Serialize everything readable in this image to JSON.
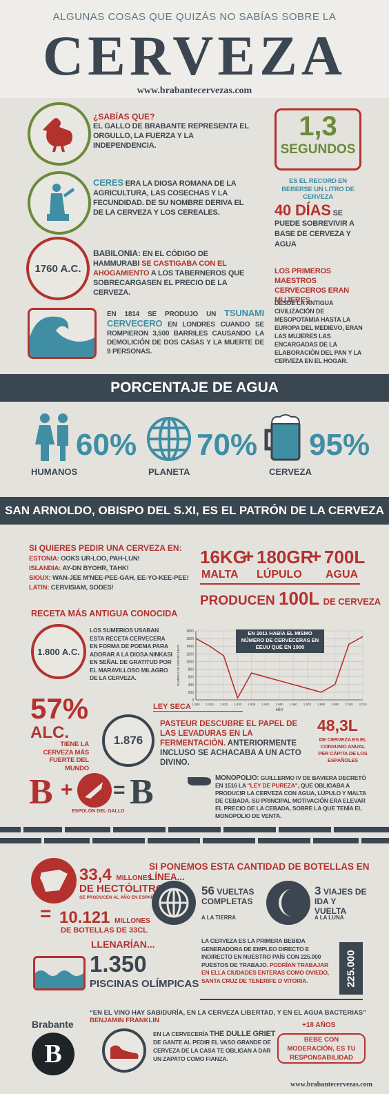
{
  "header": {
    "kicker": "ALGUNAS COSAS QUE QUIZÁS NO SABÍAS SOBRE LA",
    "title": "CERVEZA",
    "url": "www.brabantecervezas.com"
  },
  "facts": [
    {
      "heading": "¿SABÍAS QUE?",
      "text": "EL GALLO DE BRABANTE REPRESENTA EL ORGULLO, LA FUERZA Y LA INDEPENDENCIA."
    },
    {
      "highlight": "CERES",
      "text": "ERA LA DIOSA ROMANA DE LA AGRICULTURA, LAS COSECHAS Y LA FECUNDIDAD. DE SU NOMBRE DERIVA EL DE LA CERVEZA Y LOS CEREALES."
    },
    {
      "badge": "1760 A.C.",
      "lead": "BABILONIA:",
      "text": "EN EL CÓDIGO DE HAMMURABI",
      "highlight": "SE CASTIGABA CON EL AHOGAMIENTO",
      "rest": "A LOS TABERNEROS QUE SOBRECARGASEN EL PRECIO DE LA CERVEZA."
    },
    {
      "text": "EN 1814 SE PRODUJO UN",
      "highlight": "TSUNAMI CERVECERO",
      "rest": "EN LONDRES CUANDO SE ROMPIERON 3,500 BARRILES CAUSANDO LA DEMOLICIÓN DE DOS CASAS Y LA MUERTE DE 9 PERSONAS."
    }
  ],
  "record": {
    "number": "1,3",
    "unit": "SEGUNDOS",
    "caption": "ES EL RECORD EN BEBERSE UN LITRO DE CERVEZA"
  },
  "days": {
    "number": "40 DÍAS",
    "text": "SE PUEDE SOBREVIVIR A BASE DE CERVEZA Y AGUA"
  },
  "women": {
    "heading": "LOS PRIMEROS MAESTROS CERVECEROS ERAN MUJERES.",
    "text": "DESDE LA ANTIGUA CIVILIZACIÓN DE MESOPOTAMIA HASTA LA EUROPA DEL MEDIEVO, ERAN LAS MUJERES LAS ENCARGADAS DE LA ELABORACIÓN DEL PAN Y LA CERVEZA EN EL HOGAR."
  },
  "water": {
    "title": "PORCENTAJE DE AGUA",
    "items": [
      {
        "value": "60%",
        "label": "HUMANOS"
      },
      {
        "value": "70%",
        "label": "PLANETA"
      },
      {
        "value": "95%",
        "label": "CERVEZA"
      }
    ]
  },
  "patron": "SAN ARNOLDO, OBISPO DEL S.XI, ES EL PATRÓN DE LA CERVEZA",
  "order": {
    "heading": "SI QUIERES PEDIR UNA CERVEZA EN:",
    "lines": [
      {
        "lang": "ESTONIA:",
        "phrase": "OOKS UR-LOO, PAH-LUN!"
      },
      {
        "lang": "ISLANDIA:",
        "phrase": "AY-DN BYOHR, TAHK!"
      },
      {
        "lang": "SIOUX:",
        "phrase": "WAN-JEE M'NEE-PEE-GAH, EE-YO-KEE-PEE!"
      },
      {
        "lang": "LATIN:",
        "phrase": "CERVISIAM, SODES!"
      }
    ]
  },
  "recipe": {
    "operator": "+",
    "items": [
      {
        "amount": "16KG",
        "name": "MALTA"
      },
      {
        "amount": "180GR",
        "name": "LÚPULO"
      },
      {
        "amount": "700L",
        "name": "AGUA"
      }
    ],
    "verb": "PRODUCEN",
    "result": "100L",
    "tail": "DE CERVEZA"
  },
  "oldest": {
    "heading": "RECETA MÁS ANTIGUA CONOCIDA",
    "badge": "1.800 A.C.",
    "text": "LOS SUMERIOS USABAN ESTA RECETA CERVECERA EN FORMA DE POEMA PARA ADORAR A LA DIOSA NINKASI EN SEÑAL DE GRATITUD POR EL MARAVILLOSO MILAGRO DE LA CERVEZA."
  },
  "chart_data": {
    "type": "line",
    "annotation": "EN 2011 HABÍA EL MISMO NÚMERO DE CERVECERAS EN EEUU QUE EN 1900",
    "y_label": "NÚMERO DE CERVECERAS",
    "x_label": "AÑO",
    "categories": [
      "1.900",
      "1.910",
      "1.920",
      "1.930",
      "1.935",
      "1.940",
      "1.950",
      "1.960",
      "1.970",
      "1.980",
      "1.990",
      "2.000",
      "2.010"
    ],
    "values": [
      1600,
      1400,
      1150,
      50,
      700,
      600,
      500,
      400,
      300,
      200,
      400,
      1450,
      1650
    ],
    "color": "#b3322e",
    "ylim": [
      0,
      1800
    ],
    "yticks": [
      0,
      200,
      400,
      600,
      800,
      1000,
      1200,
      1400,
      1600,
      1800
    ],
    "grid": true
  },
  "prohibition": "LEY SECA",
  "strongest": {
    "value": "57%",
    "unit": "ALC.",
    "text": "TIENE LA CERVEZA MÁS FUERTE DEL MUNDO"
  },
  "pasteur": {
    "badge": "1.876",
    "highlight": "PASTEUR DESCUBRE EL PAPEL DE LAS LEVADURAS EN LA FERMENTACIÓN.",
    "text": "ANTERIORMENTE INCLUSO SE ACHACABA A UN ACTO DIVINO."
  },
  "consumption": {
    "value": "48,3L",
    "text": "DE CERVEZA ES EL CONSUMO ANUAL PER CÁPITA DE LOS ESPAÑOLES"
  },
  "equation": {
    "letter": "B",
    "plus": "+",
    "equals": "=",
    "caption": "ESPOLÓN DEL GALLO"
  },
  "monopoly": {
    "lead": "MONOPOLIO:",
    "text": "GUILLERMO IV DE BAVIERA DECRETÓ EN 1516 LA",
    "highlight": "\"LEY DE PUREZA\"",
    "rest": ", QUE OBLIGABA A PRODUCIR LA CERVEZA CON AGUA, LÚPULO Y MALTA DE CEBADA. SU PRINCIPAL MOTIVACIÓN ERA ELEVAR EL PRECIO DE LA CEBADA, SOBRE LA QUE TENÍA EL MONOPOLIO DE VENTA."
  },
  "spain": {
    "value": "33,4",
    "unit": "MILLONES",
    "label": "DE HECTÓLITROS",
    "sub": "SE PRODUCEN AL AÑO EN ESPAÑA",
    "equals": "=",
    "bottles": "10.121",
    "bottles_unit": "MILLONES",
    "bottles_label": "DE BOTELLAS DE 33CL",
    "would": "LLENARÍAN...",
    "pools": "1.350",
    "pools_label": "PISCINAS OLÍMPICAS"
  },
  "in_line": {
    "heading": "SI PONEMOS ESTA CANTIDAD DE BOTELLAS EN LÍNEA...",
    "earth": {
      "value": "56",
      "text": "VUELTAS COMPLETAS",
      "sub": "A LA TIERRA"
    },
    "moon": {
      "value": "3",
      "text": "VIAJES DE IDA Y VUELTA",
      "sub": "A LA LUNA"
    }
  },
  "jobs": {
    "text": "LA CERVEZA ES LA PRIMERA BEBIDA GENERADORA DE EMPLEO DIRECTO E INDIRECTO EN NUESTRO PAÍS CON 225.000 PUESTOS DE TRABAJO.",
    "highlight": "PODRÍAN TRABAJAR EN ELLA CIUDADES ENTERAS COMO OVIEDO, SANTA CRUZ DE TENERIFE O VITORIA.",
    "badge": "225.000"
  },
  "footer": {
    "quote": "“EN EL VINO HAY SABIDURÍA, EN LA CERVEZA LIBERTAD, Y EN EL AGUA BACTERIAS”",
    "author": "BENJAMIN FRANKLIN",
    "brand": "Brabante",
    "logo": "B",
    "griet": {
      "pre": "EN LA CERVECERÍA",
      "name": "THE DULLE GRIET",
      "rest": "DE GANTE AL PEDIR EL VASO GRANDE DE CERVEZA DE LA CASA TE OBLIGAN A DAR UN ZAPATO COMO FIANZA."
    },
    "age": "+18 AÑOS",
    "warning": "BEBE CON MODERACIÓN, ES TU RESPONSABILIDAD",
    "url": "www.brabantecervezas.com"
  }
}
